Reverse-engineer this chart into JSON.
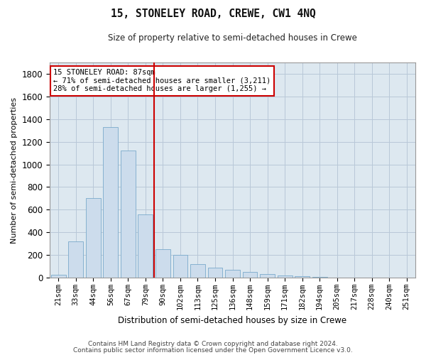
{
  "title": "15, STONELEY ROAD, CREWE, CW1 4NQ",
  "subtitle": "Size of property relative to semi-detached houses in Crewe",
  "xlabel": "Distribution of semi-detached houses by size in Crewe",
  "ylabel": "Number of semi-detached properties",
  "footnote1": "Contains HM Land Registry data © Crown copyright and database right 2024.",
  "footnote2": "Contains public sector information licensed under the Open Government Licence v3.0.",
  "annotation_title": "15 STONELEY ROAD: 87sqm",
  "annotation_line1": "← 71% of semi-detached houses are smaller (3,211)",
  "annotation_line2": "28% of semi-detached houses are larger (1,255) →",
  "bar_color": "#ccdcec",
  "bar_edge_color": "#7aaacb",
  "vline_color": "#cc0000",
  "annotation_box_color": "#cc0000",
  "grid_color": "#b8c8d8",
  "background_color": "#dde8f0",
  "categories": [
    "21sqm",
    "33sqm",
    "44sqm",
    "56sqm",
    "67sqm",
    "79sqm",
    "90sqm",
    "102sqm",
    "113sqm",
    "125sqm",
    "136sqm",
    "148sqm",
    "159sqm",
    "171sqm",
    "182sqm",
    "194sqm",
    "205sqm",
    "217sqm",
    "228sqm",
    "240sqm",
    "251sqm"
  ],
  "values": [
    25,
    320,
    700,
    1330,
    1120,
    560,
    250,
    200,
    120,
    90,
    70,
    50,
    30,
    20,
    10,
    5,
    3,
    2,
    1,
    1,
    1
  ],
  "ylim": [
    0,
    1900
  ],
  "yticks": [
    0,
    200,
    400,
    600,
    800,
    1000,
    1200,
    1400,
    1600,
    1800
  ],
  "vline_x_index": 6,
  "figsize": [
    6.0,
    5.0
  ],
  "dpi": 100
}
